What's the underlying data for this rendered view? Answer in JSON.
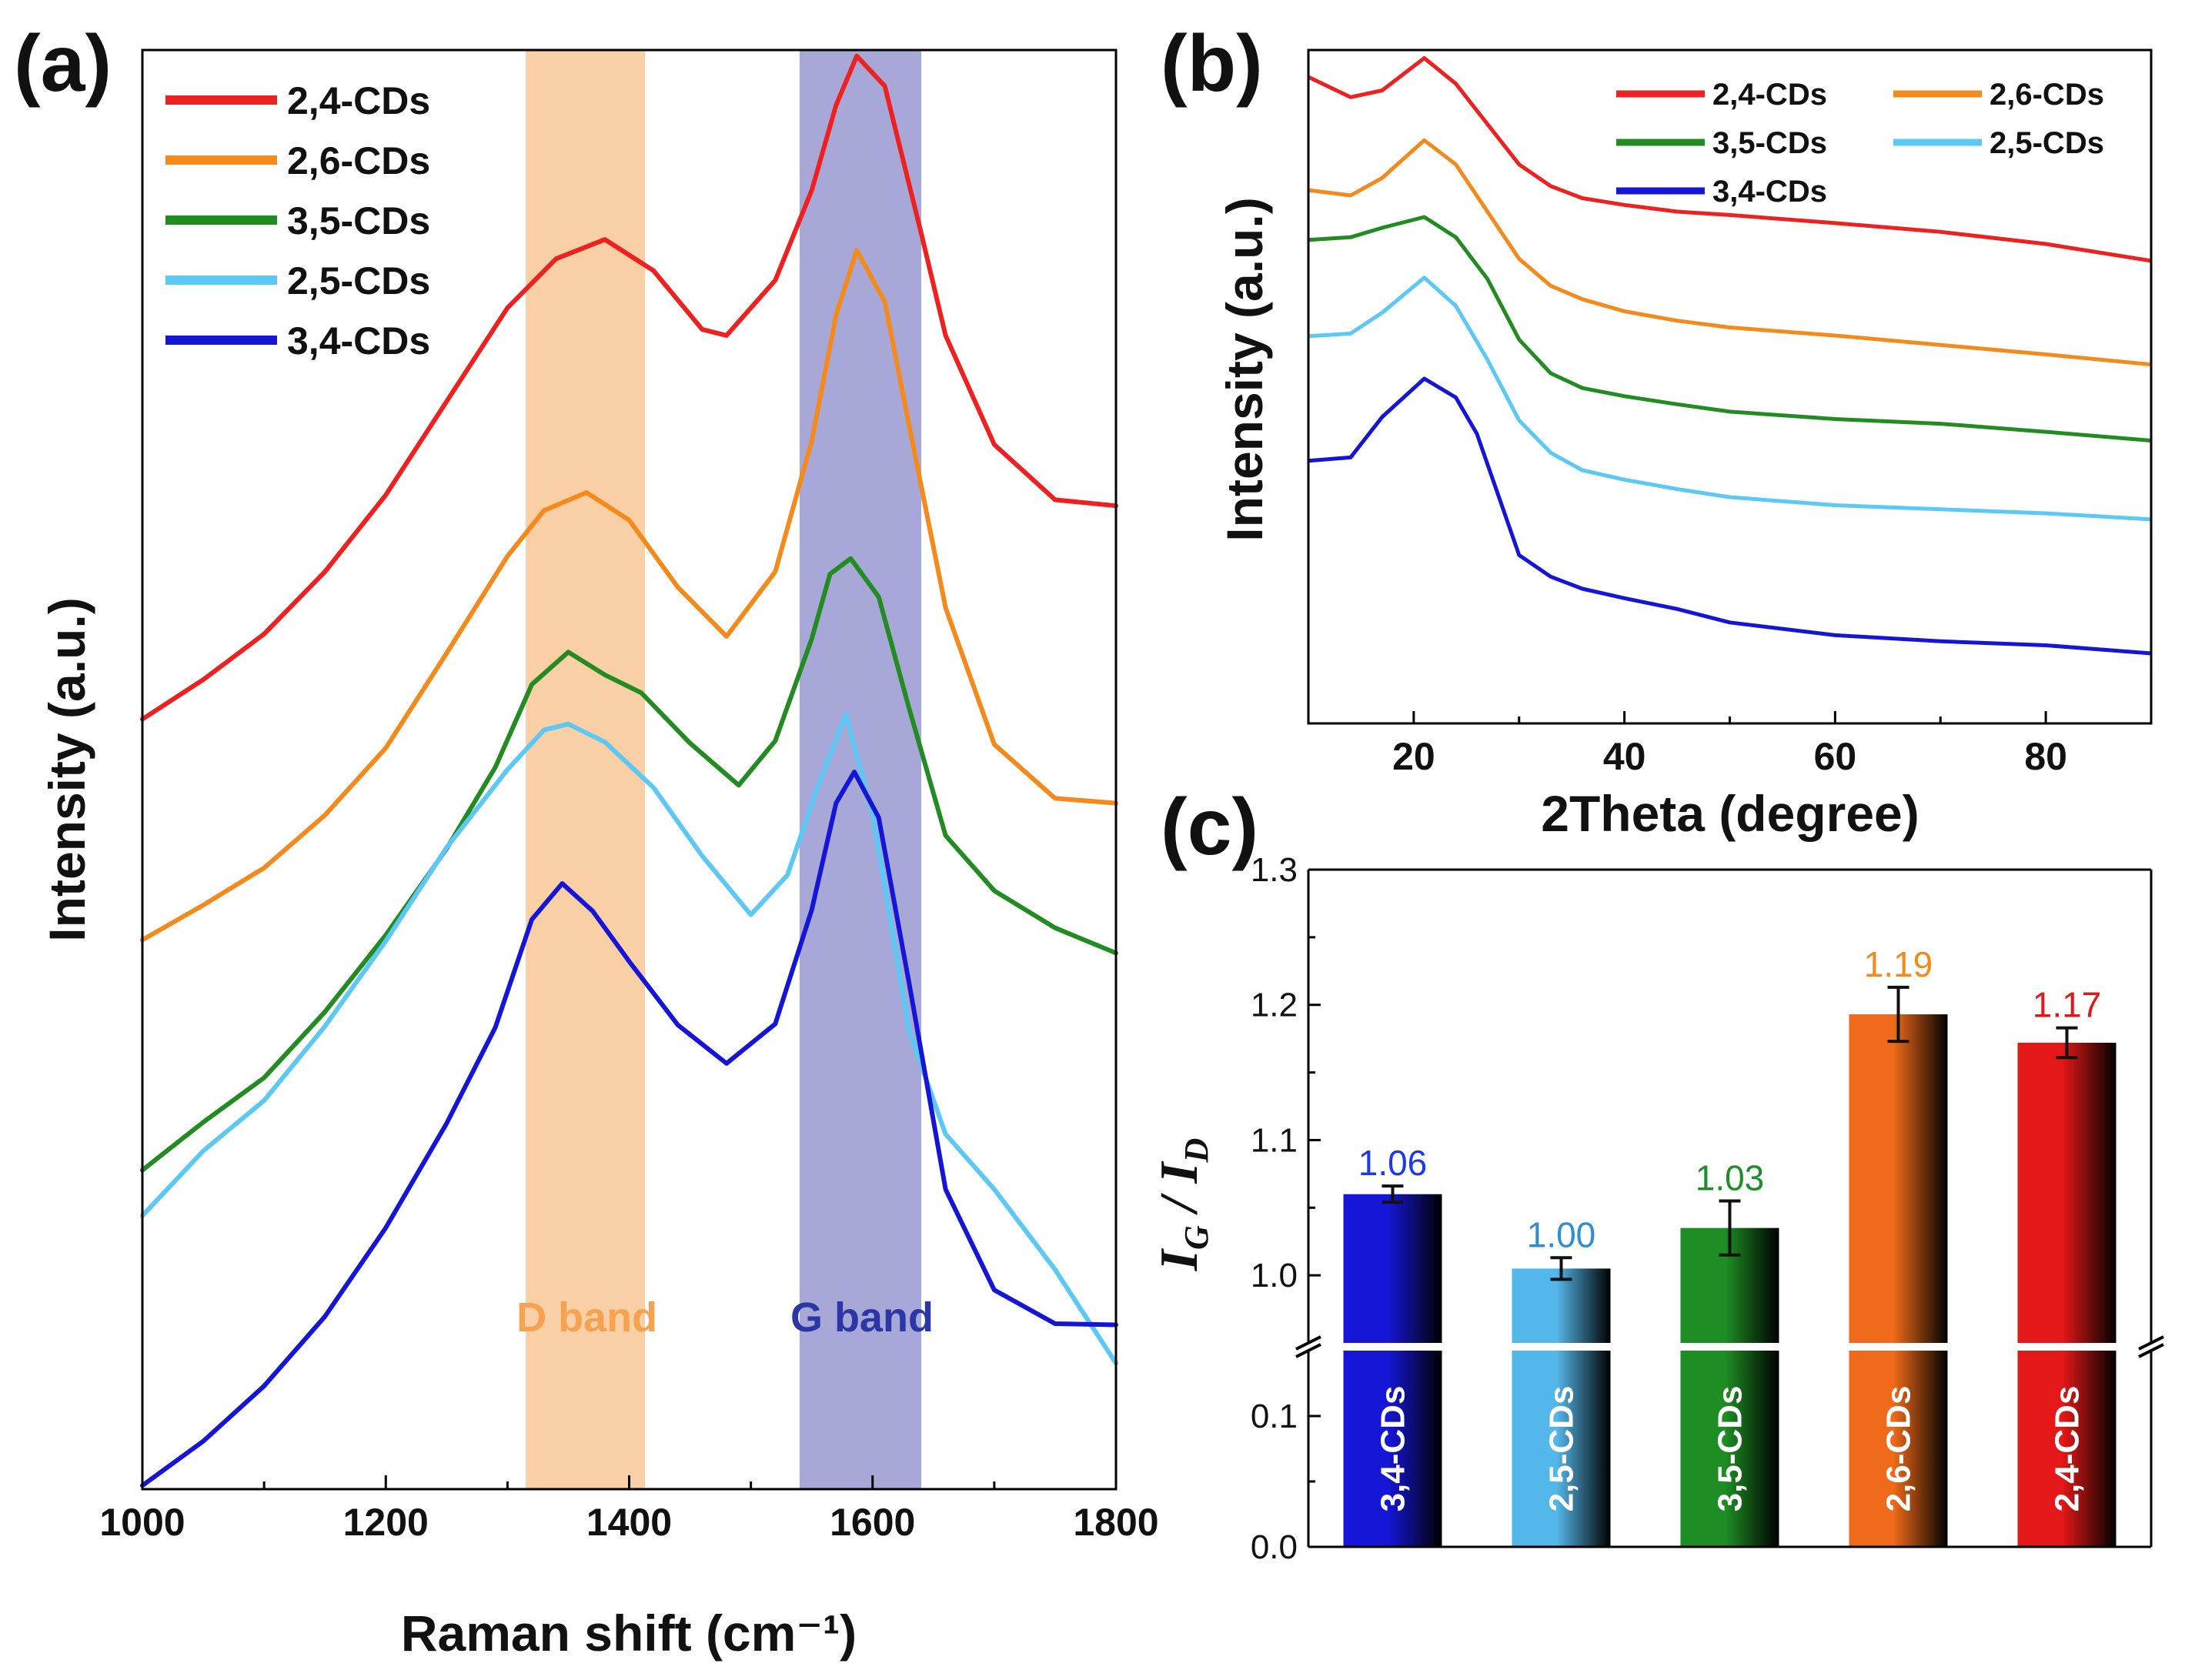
{
  "figure": {
    "panels": [
      "(a)",
      "(b)",
      "(c)"
    ]
  },
  "chart_data": [
    {
      "type": "line",
      "panel": "(a)",
      "title": "",
      "xlabel": "Raman shift (cm⁻¹)",
      "ylabel": "Intensity (a.u.)",
      "xlim": [
        1000,
        1800
      ],
      "xticks": [
        1000,
        1200,
        1400,
        1600,
        1800
      ],
      "ylim": [
        0,
        12
      ],
      "yticks_shown": false,
      "legend_position": "top-left",
      "bands": [
        {
          "name": "D band",
          "range": [
            1315,
            1413
          ],
          "color": "#f9cfa6",
          "label_color": "#f7a250"
        },
        {
          "name": "G band",
          "range": [
            1540,
            1640
          ],
          "color": "#a7a8d8",
          "label_color": "#2a37a5"
        }
      ],
      "series": [
        {
          "name": "2,4-CDs",
          "color": "#ee2020",
          "x": [
            1000,
            1050,
            1100,
            1150,
            1200,
            1250,
            1300,
            1340,
            1380,
            1420,
            1460,
            1480,
            1520,
            1550,
            1570,
            1587,
            1610,
            1640,
            1660,
            1700,
            1750,
            1800
          ],
          "y": [
            6.42,
            6.75,
            7.13,
            7.65,
            8.29,
            9.07,
            9.85,
            10.26,
            10.42,
            10.16,
            9.67,
            9.62,
            10.08,
            10.83,
            11.54,
            11.95,
            11.7,
            10.47,
            9.62,
            8.71,
            8.25,
            8.2
          ]
        },
        {
          "name": "2,6-CDs",
          "color": "#f58a1c",
          "x": [
            1000,
            1050,
            1100,
            1150,
            1200,
            1250,
            1300,
            1330,
            1365,
            1400,
            1440,
            1480,
            1520,
            1550,
            1570,
            1587,
            1610,
            1630,
            1660,
            1700,
            1750,
            1800
          ],
          "y": [
            4.58,
            4.87,
            5.18,
            5.62,
            6.18,
            6.97,
            7.78,
            8.16,
            8.31,
            8.08,
            7.52,
            7.11,
            7.65,
            8.74,
            9.79,
            10.33,
            9.9,
            8.87,
            7.35,
            6.21,
            5.76,
            5.72
          ]
        },
        {
          "name": "3,5-CDs",
          "color": "#228b22",
          "x": [
            1000,
            1050,
            1100,
            1150,
            1200,
            1250,
            1290,
            1320,
            1350,
            1380,
            1410,
            1450,
            1490,
            1520,
            1550,
            1565,
            1582,
            1605,
            1630,
            1660,
            1700,
            1750,
            1800
          ],
          "y": [
            2.66,
            3.06,
            3.43,
            3.98,
            4.62,
            5.34,
            6.02,
            6.71,
            6.98,
            6.79,
            6.64,
            6.22,
            5.87,
            6.24,
            7.09,
            7.63,
            7.76,
            7.44,
            6.51,
            5.45,
            4.99,
            4.68,
            4.47
          ]
        },
        {
          "name": "2,5-CDs",
          "color": "#5bc8f5",
          "x": [
            1000,
            1050,
            1100,
            1150,
            1200,
            1250,
            1300,
            1330,
            1350,
            1380,
            1420,
            1460,
            1500,
            1530,
            1555,
            1578,
            1600,
            1630,
            1660,
            1700,
            1750,
            1800
          ],
          "y": [
            2.28,
            2.82,
            3.24,
            3.86,
            4.57,
            5.35,
            6.0,
            6.33,
            6.38,
            6.23,
            5.85,
            5.28,
            4.79,
            5.12,
            5.86,
            6.46,
            5.62,
            3.82,
            2.96,
            2.5,
            1.83,
            1.05
          ]
        },
        {
          "name": "3,4-CDs",
          "color": "#1515d6",
          "x": [
            1000,
            1050,
            1100,
            1150,
            1200,
            1250,
            1290,
            1320,
            1345,
            1370,
            1400,
            1440,
            1480,
            1520,
            1550,
            1570,
            1585,
            1605,
            1630,
            1660,
            1700,
            1750,
            1800
          ],
          "y": [
            0.03,
            0.4,
            0.86,
            1.44,
            2.18,
            3.05,
            3.85,
            4.75,
            5.05,
            4.82,
            4.4,
            3.87,
            3.55,
            3.88,
            4.83,
            5.72,
            5.98,
            5.6,
            4.22,
            2.5,
            1.66,
            1.38,
            1.37
          ]
        }
      ],
      "annotations": [
        "D band",
        "G band"
      ]
    },
    {
      "type": "line",
      "panel": "(b)",
      "title": "",
      "xlabel": "2Theta (degree)",
      "ylabel": "Intensity (a.u.)",
      "xlim": [
        10,
        90
      ],
      "xticks": [
        20,
        40,
        60,
        80
      ],
      "ylim": [
        0,
        10
      ],
      "yticks_shown": false,
      "legend_position": "top-right",
      "series": [
        {
          "name": "2,4-CDs",
          "color": "#ee2020",
          "x": [
            10,
            14,
            17,
            21,
            24,
            27,
            30,
            33,
            36,
            40,
            45,
            50,
            60,
            70,
            80,
            90
          ],
          "y": [
            9.6,
            9.3,
            9.4,
            9.88,
            9.5,
            8.9,
            8.3,
            7.98,
            7.8,
            7.7,
            7.6,
            7.55,
            7.43,
            7.3,
            7.12,
            6.87
          ]
        },
        {
          "name": "2,6-CDs",
          "color": "#f58a1c",
          "x": [
            10,
            14,
            17,
            21,
            24,
            27,
            30,
            33,
            36,
            40,
            45,
            50,
            60,
            70,
            80,
            90
          ],
          "y": [
            7.92,
            7.84,
            8.1,
            8.66,
            8.3,
            7.6,
            6.9,
            6.5,
            6.3,
            6.12,
            5.98,
            5.88,
            5.76,
            5.62,
            5.48,
            5.33
          ]
        },
        {
          "name": "3,5-CDs",
          "color": "#228b22",
          "x": [
            10,
            14,
            17,
            21,
            24,
            27,
            30,
            33,
            36,
            40,
            45,
            50,
            60,
            70,
            80,
            90
          ],
          "y": [
            7.18,
            7.22,
            7.36,
            7.52,
            7.22,
            6.6,
            5.7,
            5.2,
            4.98,
            4.86,
            4.74,
            4.63,
            4.52,
            4.45,
            4.33,
            4.2
          ]
        },
        {
          "name": "2,5-CDs",
          "color": "#5bc8f5",
          "x": [
            10,
            14,
            17,
            21,
            24,
            27,
            30,
            33,
            36,
            40,
            45,
            50,
            60,
            70,
            80,
            90
          ],
          "y": [
            5.75,
            5.79,
            6.1,
            6.62,
            6.2,
            5.4,
            4.5,
            4.02,
            3.76,
            3.62,
            3.48,
            3.36,
            3.24,
            3.18,
            3.12,
            3.03
          ]
        },
        {
          "name": "3,4-CDs",
          "color": "#1515d6",
          "x": [
            10,
            14,
            17,
            21,
            24,
            26,
            28,
            30,
            33,
            36,
            40,
            45,
            50,
            60,
            70,
            80,
            90
          ],
          "y": [
            3.9,
            3.95,
            4.55,
            5.12,
            4.84,
            4.3,
            3.4,
            2.5,
            2.18,
            2.0,
            1.86,
            1.7,
            1.5,
            1.31,
            1.22,
            1.16,
            1.04
          ]
        }
      ]
    },
    {
      "type": "bar",
      "panel": "(c)",
      "title": "",
      "xlabel": "",
      "ylabel": "I_G / I_D",
      "ylabel_parts": {
        "g_sym": "I",
        "g_sub": "G",
        "sep": " / ",
        "d_sym": "I",
        "d_sub": "D"
      },
      "broken_axis": true,
      "ylim_lower": [
        0.0,
        0.15
      ],
      "ylim_upper": [
        0.95,
        1.3
      ],
      "yticks": [
        0.0,
        0.1,
        1.0,
        1.1,
        1.2,
        1.3
      ],
      "ytick_labels": [
        "0.0",
        "0.1",
        "1.0",
        "1.1",
        "1.2",
        "1.3"
      ],
      "categories": [
        "3,4-CDs",
        "2,5-CDs",
        "3,5-CDs",
        "2,6-CDs",
        "2,4-CDs"
      ],
      "values": [
        1.06,
        1.005,
        1.035,
        1.193,
        1.172
      ],
      "value_labels": [
        "1.06",
        "1.00",
        "1.03",
        "1.19",
        "1.17"
      ],
      "errors": [
        0.006,
        0.008,
        0.02,
        0.02,
        0.011
      ],
      "colors": [
        "#1616d8",
        "#54b7ea",
        "#1e8e24",
        "#ef6a1a",
        "#e41818"
      ],
      "label_colors": [
        "#1f39e6",
        "#2f8ed0",
        "#1f8e2a",
        "#f58a1c",
        "#e41818"
      ]
    }
  ]
}
